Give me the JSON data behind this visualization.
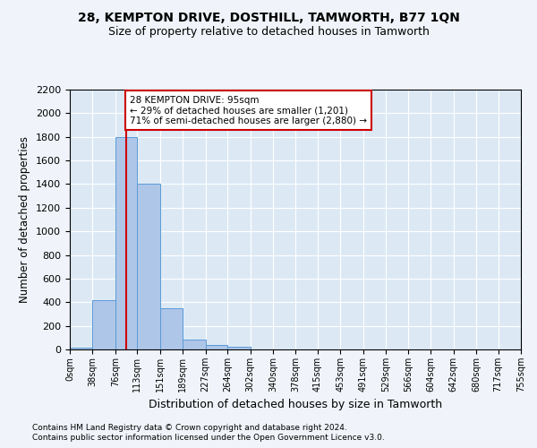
{
  "title": "28, KEMPTON DRIVE, DOSTHILL, TAMWORTH, B77 1QN",
  "subtitle": "Size of property relative to detached houses in Tamworth",
  "xlabel": "Distribution of detached houses by size in Tamworth",
  "ylabel": "Number of detached properties",
  "bar_color": "#aec6e8",
  "bar_edge_color": "#5b9bd5",
  "background_color": "#dce9f5",
  "grid_color": "#ffffff",
  "fig_background": "#f0f4fa",
  "bin_edges": [
    0,
    38,
    76,
    113,
    151,
    189,
    227,
    264,
    302,
    340,
    378,
    415,
    453,
    491,
    529,
    566,
    604,
    642,
    680,
    717,
    755
  ],
  "bar_heights": [
    15,
    420,
    1800,
    1400,
    350,
    80,
    35,
    20,
    0,
    0,
    0,
    0,
    0,
    0,
    0,
    0,
    0,
    0,
    0,
    0
  ],
  "property_size": 95,
  "property_line_color": "#cc0000",
  "annotation_text": "28 KEMPTON DRIVE: 95sqm\n← 29% of detached houses are smaller (1,201)\n71% of semi-detached houses are larger (2,880) →",
  "annotation_box_color": "#ffffff",
  "annotation_box_edge": "#cc0000",
  "ylim": [
    0,
    2200
  ],
  "yticks": [
    0,
    200,
    400,
    600,
    800,
    1000,
    1200,
    1400,
    1600,
    1800,
    2000,
    2200
  ],
  "footnote1": "Contains HM Land Registry data © Crown copyright and database right 2024.",
  "footnote2": "Contains public sector information licensed under the Open Government Licence v3.0.",
  "tick_labels": [
    "0sqm",
    "38sqm",
    "76sqm",
    "113sqm",
    "151sqm",
    "189sqm",
    "227sqm",
    "264sqm",
    "302sqm",
    "340sqm",
    "378sqm",
    "415sqm",
    "453sqm",
    "491sqm",
    "529sqm",
    "566sqm",
    "604sqm",
    "642sqm",
    "680sqm",
    "717sqm",
    "755sqm"
  ]
}
